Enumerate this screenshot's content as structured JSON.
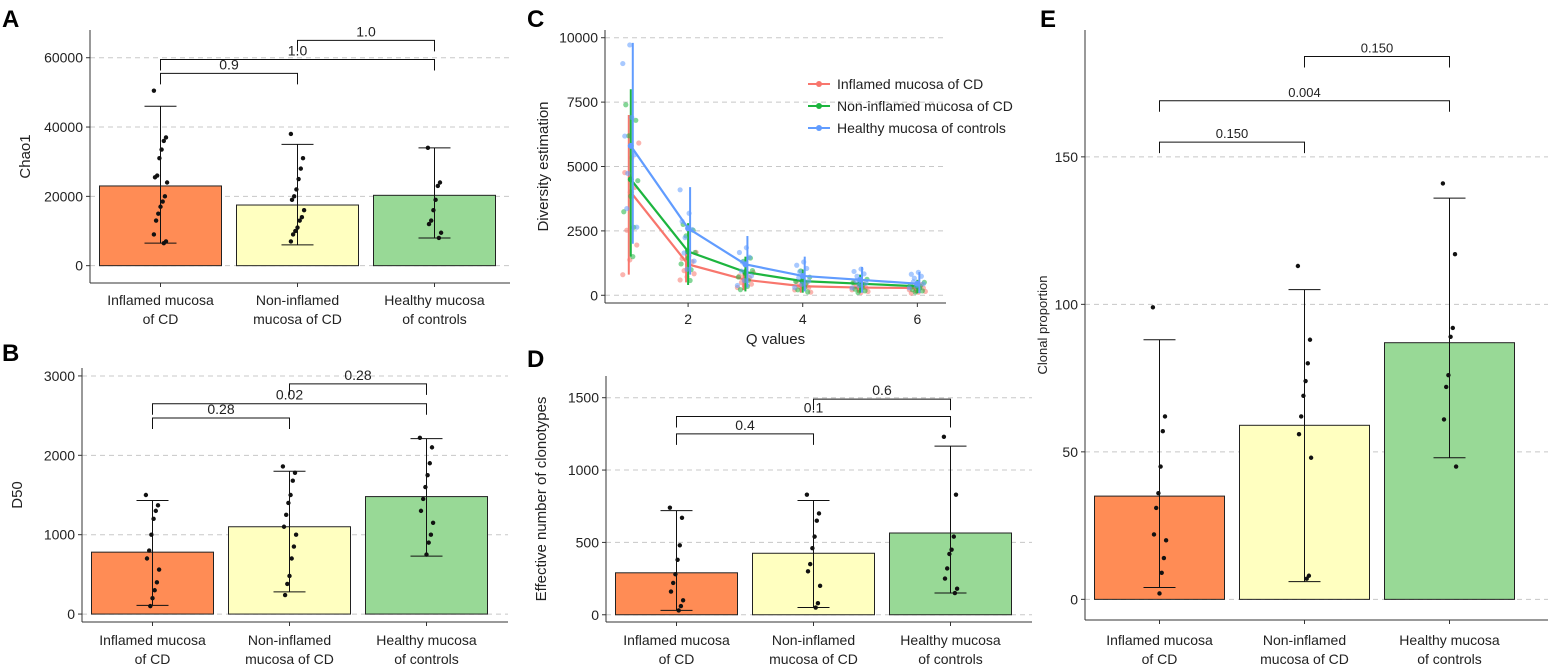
{
  "colors": {
    "inflamed": "#FF8C55",
    "noninflamed": "#FFFFC0",
    "healthy": "#98D996",
    "line_inflamed": "#F8766D",
    "line_noninflamed": "#1DB53F",
    "line_healthy": "#619CFF",
    "grid": "#C8C8C8",
    "axis": "#333333"
  },
  "chart_data": [
    {
      "panel": "A",
      "type": "bar",
      "title": "",
      "xlabel": "",
      "ylabel": "Chao1",
      "ylim": [
        -5000,
        68000
      ],
      "yticks": [
        0,
        20000,
        40000,
        60000
      ],
      "categories": [
        "Inflamed mucosa\nof CD",
        "Non-inflamed\nmucosa of CD",
        "Healthy mucosa\nof controls"
      ],
      "values": [
        23000,
        17500,
        20300
      ],
      "errors": [
        [
          6500,
          46000
        ],
        [
          6000,
          35000
        ],
        [
          8000,
          34000
        ]
      ],
      "points": [
        [
          50500,
          37000,
          36000,
          33500,
          31000,
          26000,
          25500,
          24000,
          20000,
          18500,
          17000,
          15000,
          13000,
          9000,
          7000,
          6500
        ],
        [
          38000,
          31000,
          28000,
          25000,
          22000,
          20000,
          19000,
          16000,
          14000,
          13000,
          11000,
          10000,
          9000,
          7000
        ],
        [
          34000,
          24000,
          23000,
          19000,
          16000,
          13000,
          12000,
          9500,
          8000
        ]
      ],
      "brackets": [
        {
          "from": 0,
          "to": 1,
          "label": "0.9",
          "y": 55500
        },
        {
          "from": 0,
          "to": 2,
          "label": "1.0",
          "y": 59500
        },
        {
          "from": 1,
          "to": 2,
          "label": "1.0",
          "y": 65000
        }
      ]
    },
    {
      "panel": "B",
      "type": "bar",
      "title": "",
      "xlabel": "",
      "ylabel": "D50",
      "ylim": [
        -100,
        3100
      ],
      "yticks": [
        0,
        1000,
        2000,
        3000
      ],
      "categories": [
        "Inflamed mucosa\nof CD",
        "Non-inflamed\nmucosa of CD",
        "Healthy mucosa\nof controls"
      ],
      "values": [
        780,
        1100,
        1480
      ],
      "errors": [
        [
          110,
          1430
        ],
        [
          280,
          1800
        ],
        [
          730,
          2210
        ]
      ],
      "points": [
        [
          1500,
          1370,
          1300,
          1200,
          1000,
          800,
          700,
          560,
          400,
          300,
          200,
          100
        ],
        [
          1860,
          1780,
          1680,
          1500,
          1400,
          1250,
          1100,
          1000,
          850,
          700,
          480,
          380,
          240
        ],
        [
          2220,
          2100,
          1900,
          1750,
          1600,
          1450,
          1300,
          1150,
          1000,
          900,
          750
        ]
      ],
      "brackets": [
        {
          "from": 0,
          "to": 1,
          "label": "0.28",
          "y": 2470
        },
        {
          "from": 0,
          "to": 2,
          "label": "0.02",
          "y": 2650
        },
        {
          "from": 1,
          "to": 2,
          "label": "0.28",
          "y": 2900
        }
      ]
    },
    {
      "panel": "C",
      "type": "line",
      "title": "",
      "xlabel": "Q values",
      "ylabel": "Diversity estimation",
      "xlim": [
        0.55,
        6.5
      ],
      "ylim": [
        -300,
        10300
      ],
      "xticks": [
        2,
        4,
        6
      ],
      "yticks": [
        0,
        2500,
        5000,
        7500,
        10000
      ],
      "x": [
        1,
        2,
        3,
        4,
        5,
        6
      ],
      "series": [
        {
          "name": "Inflamed mucosa of CD",
          "values": [
            4000,
            1200,
            600,
            350,
            300,
            280
          ],
          "err": [
            [
              800,
              7000
            ],
            [
              500,
              1800
            ],
            [
              200,
              900
            ],
            [
              100,
              600
            ],
            [
              100,
              500
            ],
            [
              80,
              450
            ]
          ]
        },
        {
          "name": "Non-inflamed mucosa of CD",
          "values": [
            4500,
            1700,
            900,
            550,
            450,
            350
          ],
          "err": [
            [
              1500,
              8000
            ],
            [
              400,
              2800
            ],
            [
              150,
              1500
            ],
            [
              100,
              1000
            ],
            [
              100,
              800
            ],
            [
              80,
              600
            ]
          ]
        },
        {
          "name": "Healthy mucosa of controls",
          "values": [
            5800,
            2600,
            1200,
            750,
            600,
            450
          ],
          "err": [
            [
              2000,
              9800
            ],
            [
              800,
              4200
            ],
            [
              300,
              2300
            ],
            [
              150,
              1500
            ],
            [
              100,
              1100
            ],
            [
              80,
              900
            ]
          ]
        }
      ],
      "legend": "top-right"
    },
    {
      "panel": "D",
      "type": "bar",
      "title": "",
      "xlabel": "",
      "ylabel": "Effective number of clonotypes",
      "ylim": [
        -50,
        1650
      ],
      "yticks": [
        0,
        500,
        1000,
        1500
      ],
      "categories": [
        "Inflamed mucosa\nof CD",
        "Non-inflamed\nmucosa of CD",
        "Healthy mucosa\nof controls"
      ],
      "values": [
        290,
        425,
        565
      ],
      "errors": [
        [
          30,
          720
        ],
        [
          50,
          790
        ],
        [
          150,
          1165
        ]
      ],
      "points": [
        [
          740,
          670,
          480,
          380,
          280,
          220,
          160,
          100,
          60,
          30
        ],
        [
          830,
          700,
          650,
          540,
          460,
          350,
          300,
          200,
          80,
          50
        ],
        [
          1230,
          830,
          540,
          450,
          420,
          320,
          250,
          180,
          150
        ]
      ],
      "brackets": [
        {
          "from": 0,
          "to": 1,
          "label": "0.4",
          "y": 1250
        },
        {
          "from": 0,
          "to": 2,
          "label": "0.1",
          "y": 1370
        },
        {
          "from": 1,
          "to": 2,
          "label": "0.6",
          "y": 1490
        }
      ]
    },
    {
      "panel": "E",
      "type": "bar",
      "title": "",
      "xlabel": "",
      "ylabel": "Clonal proportion",
      "ylim": [
        -7,
        193
      ],
      "yticks": [
        0,
        50,
        100,
        150
      ],
      "categories": [
        "Inflamed mucosa\nof CD",
        "Non-inflamed\nmucosa of CD",
        "Healthy mucosa\nof controls"
      ],
      "values": [
        35,
        59,
        87
      ],
      "errors": [
        [
          4,
          88
        ],
        [
          6,
          105
        ],
        [
          48,
          136
        ]
      ],
      "points": [
        [
          99,
          62,
          57,
          45,
          36,
          31,
          22,
          20,
          14,
          9,
          2
        ],
        [
          113,
          88,
          80,
          74,
          69,
          62,
          56,
          48,
          8,
          7
        ],
        [
          141,
          117,
          92,
          89,
          76,
          72,
          61,
          45
        ]
      ],
      "brackets": [
        {
          "from": 0,
          "to": 1,
          "label": "0.150",
          "y": 155
        },
        {
          "from": 0,
          "to": 2,
          "label": "0.004",
          "y": 169
        },
        {
          "from": 1,
          "to": 2,
          "label": "0.150",
          "y": 184
        }
      ]
    }
  ],
  "panel_labels": [
    "A",
    "B",
    "C",
    "D",
    "E"
  ]
}
